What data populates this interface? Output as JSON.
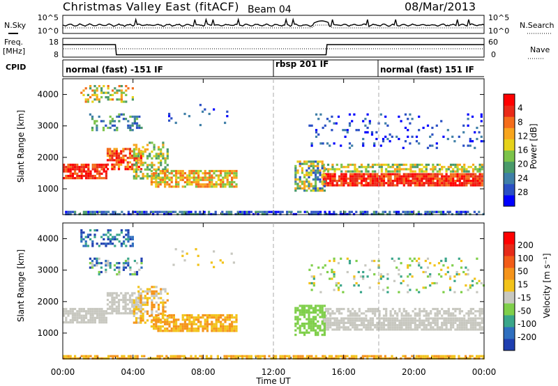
{
  "header": {
    "title": "Christmas Valley East (fitACF)",
    "beam": "Beam 04",
    "date": "08/Mar/2013"
  },
  "panels": {
    "noise": {
      "left_label": "N.Sky",
      "right_label": "N.Search",
      "ticks_left": [
        "10^5",
        "10^0"
      ],
      "ticks_right": [
        "10^5",
        "10^0"
      ]
    },
    "freq": {
      "left_label": [
        "Freq.",
        "[MHz]"
      ],
      "right_label": "Nave",
      "ticks_left": [
        "18",
        "8"
      ],
      "ticks_right": [
        "60",
        "0"
      ],
      "freq_series_hours": [
        0,
        3,
        3.05,
        15,
        15.05,
        24
      ],
      "freq_series_mhz": [
        18,
        18,
        9.9,
        9.9,
        18,
        18
      ]
    },
    "cpid": {
      "label": "CPID",
      "modes": [
        {
          "label": "normal (fast) -151 IF",
          "start_hour": 0
        },
        {
          "label": "rbsp 201 IF",
          "start_hour": 12
        },
        {
          "label": "normal (fast) 151 IF",
          "start_hour": 18
        }
      ]
    }
  },
  "chart_data": [
    {
      "type": "heatmap",
      "name": "power",
      "ylabel": "Slant Range [km]",
      "yticks": [
        1000,
        2000,
        3000,
        4000
      ],
      "ylim": [
        180,
        4500
      ],
      "colorbar_label": "Power [dB]",
      "colorbar_ticks": [
        "4",
        "8",
        "12",
        "16",
        "20",
        "24",
        "28"
      ],
      "colorbar_colors": [
        "#0000ff",
        "#2a4fc4",
        "#3f7fa7",
        "#4a9a6a",
        "#7cc34a",
        "#e6d21a",
        "#f7a51e",
        "#f46d1b",
        "#ea2a18",
        "#ff0000"
      ]
    },
    {
      "type": "heatmap",
      "name": "velocity",
      "ylabel": "Slant Range [km]",
      "yticks": [
        1000,
        2000,
        3000,
        4000
      ],
      "ylim": [
        180,
        4500
      ],
      "colorbar_label": "Velocity [m s⁻¹]",
      "colorbar_ticks": [
        "200",
        "100",
        "50",
        "15",
        "-15",
        "-50",
        "-100",
        "-200"
      ],
      "colorbar_colors": [
        "#1f3fb0",
        "#2f6fbf",
        "#3aa68a",
        "#7fcf4a",
        "#c8c8c0",
        "#f2c31a",
        "#f5941b",
        "#f25c18",
        "#e62a18",
        "#ff0000"
      ]
    }
  ],
  "xaxis": {
    "label": "Time UT",
    "ticks": [
      "00:00",
      "04:00",
      "08:00",
      "12:00",
      "16:00",
      "20:00",
      "00:00"
    ],
    "tick_hours": [
      0,
      4,
      8,
      12,
      16,
      20,
      24
    ]
  }
}
